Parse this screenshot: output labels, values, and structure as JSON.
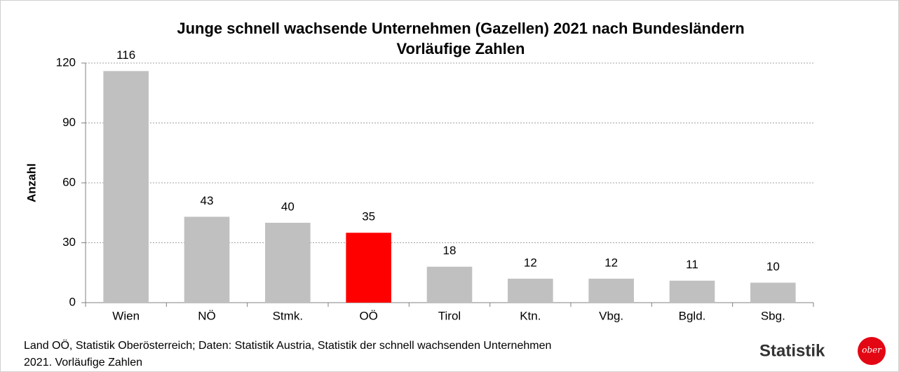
{
  "chart_data": {
    "type": "bar",
    "title": [
      "Junge schnell wachsende Unternehmen (Gazellen) 2021 nach Bundesländern",
      "Vorläufige Zahlen"
    ],
    "y_label": "Anzahl",
    "categories": [
      "Wien",
      "NÖ",
      "Stmk.",
      "OÖ",
      "Tirol",
      "Ktn.",
      "Vbg.",
      "Bgld.",
      "Sbg."
    ],
    "values": [
      116,
      43,
      40,
      35,
      18,
      12,
      12,
      11,
      10
    ],
    "colors": [
      "#c0c0c0",
      "#c0c0c0",
      "#c0c0c0",
      "#ff0000",
      "#c0c0c0",
      "#c0c0c0",
      "#c0c0c0",
      "#c0c0c0",
      "#c0c0c0"
    ],
    "ylim": [
      0,
      120
    ],
    "yticks": [
      0,
      30,
      60,
      90,
      120
    ],
    "grid": true,
    "source": [
      "Land OÖ, Statistik Oberösterreich; Daten: Statistik Austria, Statistik der schnell wachsenden Unternehmen",
      "2021. Vorläufige Zahlen"
    ],
    "logo": {
      "text": "Statistik",
      "badge": "ober"
    }
  }
}
